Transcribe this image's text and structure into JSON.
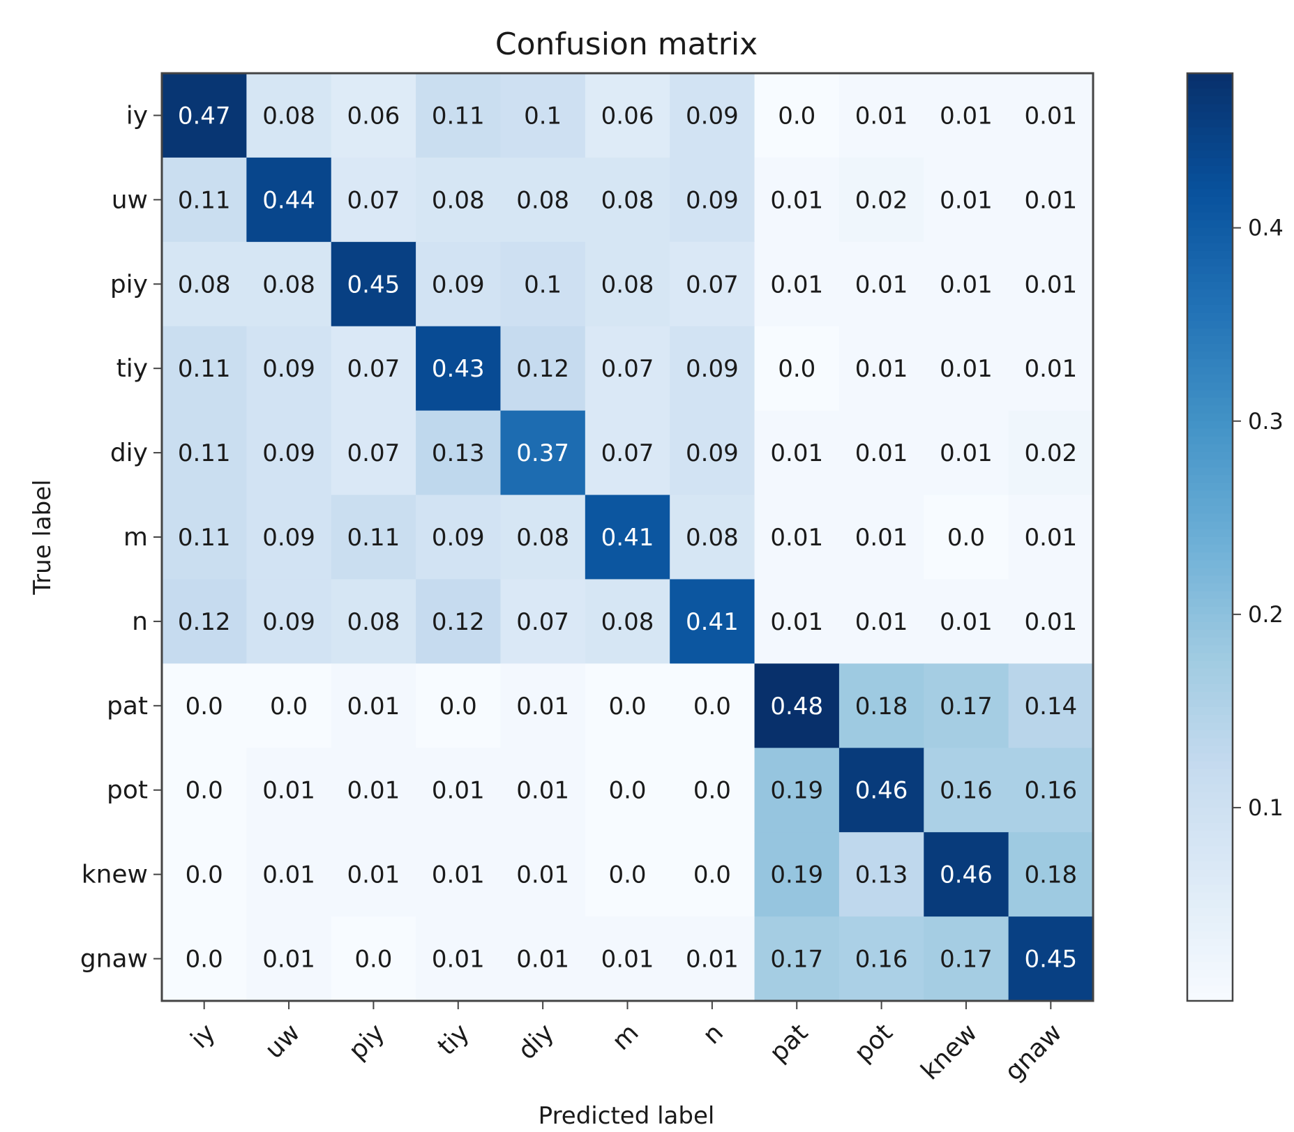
{
  "chart_data": {
    "type": "heatmap",
    "title": "Confusion matrix",
    "xlabel": "Predicted label",
    "ylabel": "True label",
    "x_categories": [
      "iy",
      "uw",
      "piy",
      "tiy",
      "diy",
      "m",
      "n",
      "pat",
      "pot",
      "knew",
      "gnaw"
    ],
    "y_categories": [
      "iy",
      "uw",
      "piy",
      "tiy",
      "diy",
      "m",
      "n",
      "pat",
      "pot",
      "knew",
      "gnaw"
    ],
    "matrix": [
      [
        "0.47",
        "0.08",
        "0.06",
        "0.11",
        "0.1",
        "0.06",
        "0.09",
        "0.0",
        "0.01",
        "0.01",
        "0.01"
      ],
      [
        "0.11",
        "0.44",
        "0.07",
        "0.08",
        "0.08",
        "0.08",
        "0.09",
        "0.01",
        "0.02",
        "0.01",
        "0.01"
      ],
      [
        "0.08",
        "0.08",
        "0.45",
        "0.09",
        "0.1",
        "0.08",
        "0.07",
        "0.01",
        "0.01",
        "0.01",
        "0.01"
      ],
      [
        "0.11",
        "0.09",
        "0.07",
        "0.43",
        "0.12",
        "0.07",
        "0.09",
        "0.0",
        "0.01",
        "0.01",
        "0.01"
      ],
      [
        "0.11",
        "0.09",
        "0.07",
        "0.13",
        "0.37",
        "0.07",
        "0.09",
        "0.01",
        "0.01",
        "0.01",
        "0.02"
      ],
      [
        "0.11",
        "0.09",
        "0.11",
        "0.09",
        "0.08",
        "0.41",
        "0.08",
        "0.01",
        "0.01",
        "0.0",
        "0.01"
      ],
      [
        "0.12",
        "0.09",
        "0.08",
        "0.12",
        "0.07",
        "0.08",
        "0.41",
        "0.01",
        "0.01",
        "0.01",
        "0.01"
      ],
      [
        "0.0",
        "0.0",
        "0.01",
        "0.0",
        "0.01",
        "0.0",
        "0.0",
        "0.48",
        "0.18",
        "0.17",
        "0.14"
      ],
      [
        "0.0",
        "0.01",
        "0.01",
        "0.01",
        "0.01",
        "0.0",
        "0.0",
        "0.19",
        "0.46",
        "0.16",
        "0.16"
      ],
      [
        "0.0",
        "0.01",
        "0.01",
        "0.01",
        "0.01",
        "0.0",
        "0.0",
        "0.19",
        "0.13",
        "0.46",
        "0.18"
      ],
      [
        "0.0",
        "0.01",
        "0.0",
        "0.01",
        "0.01",
        "0.01",
        "0.01",
        "0.17",
        "0.16",
        "0.17",
        "0.45"
      ]
    ],
    "color_range": [
      0.0,
      0.48
    ],
    "colormap": "Blues",
    "colorbar": {
      "ticks": [
        0.1,
        0.2,
        0.3,
        0.4
      ],
      "tick_labels": [
        "0.1",
        "0.2",
        "0.3",
        "0.4"
      ]
    },
    "grid": false
  },
  "colors": {
    "cmap_low": "#f7fbff",
    "cmap_mid1": "#deebf7",
    "cmap_mid2": "#c6dbef",
    "cmap_mid3": "#9ecae1",
    "cmap_mid4": "#6baed6",
    "cmap_mid5": "#4292c6",
    "cmap_mid6": "#2171b5",
    "cmap_mid7": "#08519c",
    "cmap_high": "#08306b",
    "text_dark": "#1a1a1a",
    "text_light": "#ffffff",
    "axis": "#444444"
  }
}
